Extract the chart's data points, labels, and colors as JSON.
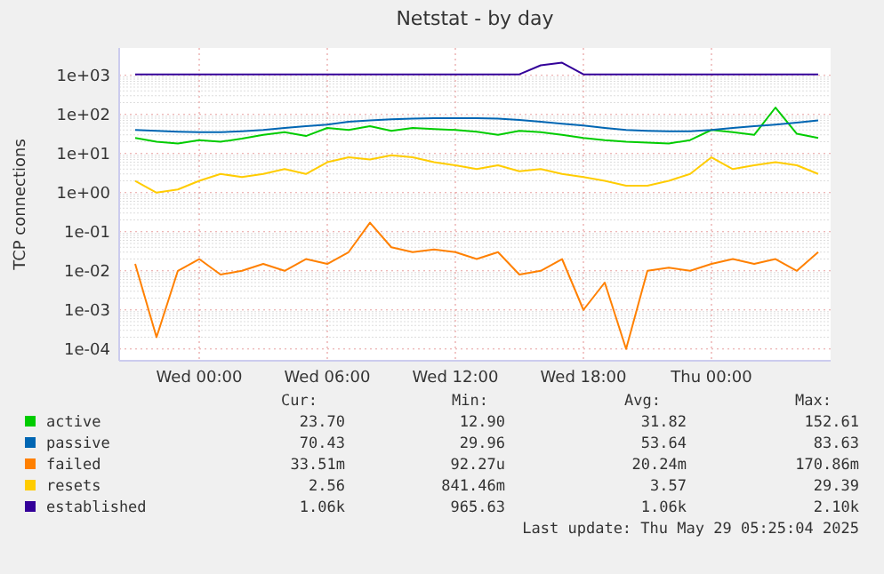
{
  "chart_data": {
    "type": "line",
    "title": "Netstat - by day",
    "ylabel": "TCP connections",
    "log": true,
    "grid": true,
    "legend": "bottom",
    "x": [
      "2025-05-27T21:00",
      "2025-05-27T22:00",
      "2025-05-27T23:00",
      "2025-05-28T00:00",
      "2025-05-28T01:00",
      "2025-05-28T02:00",
      "2025-05-28T03:00",
      "2025-05-28T04:00",
      "2025-05-28T05:00",
      "2025-05-28T06:00",
      "2025-05-28T07:00",
      "2025-05-28T08:00",
      "2025-05-28T09:00",
      "2025-05-28T10:00",
      "2025-05-28T11:00",
      "2025-05-28T12:00",
      "2025-05-28T13:00",
      "2025-05-28T14:00",
      "2025-05-28T15:00",
      "2025-05-28T16:00",
      "2025-05-28T17:00",
      "2025-05-28T18:00",
      "2025-05-28T19:00",
      "2025-05-28T20:00",
      "2025-05-28T21:00",
      "2025-05-28T22:00",
      "2025-05-28T23:00",
      "2025-05-29T00:00",
      "2025-05-29T01:00",
      "2025-05-29T02:00",
      "2025-05-29T03:00",
      "2025-05-29T04:00",
      "2025-05-29T05:00"
    ],
    "xlim": [
      "2025-05-27T20:15",
      "2025-05-29T05:35"
    ],
    "xticks": [
      {
        "value": "2025-05-28T00:00",
        "label": "Wed 00:00"
      },
      {
        "value": "2025-05-28T06:00",
        "label": "Wed 06:00"
      },
      {
        "value": "2025-05-28T12:00",
        "label": "Wed 12:00"
      },
      {
        "value": "2025-05-28T18:00",
        "label": "Wed 18:00"
      },
      {
        "value": "2025-05-29T00:00",
        "label": "Thu 00:00"
      }
    ],
    "ylim": [
      5e-05,
      5000
    ],
    "yticks": [
      {
        "value": 0.0001,
        "label": "1e-04"
      },
      {
        "value": 0.001,
        "label": "1e-03"
      },
      {
        "value": 0.01,
        "label": "1e-02"
      },
      {
        "value": 0.1,
        "label": "1e-01"
      },
      {
        "value": 1,
        "label": "1e+00"
      },
      {
        "value": 10,
        "label": "1e+01"
      },
      {
        "value": 100,
        "label": "1e+02"
      },
      {
        "value": 1000,
        "label": "1e+03"
      }
    ],
    "series": [
      {
        "name": "active",
        "color": "#00cc00",
        "values": [
          25,
          20,
          18,
          22,
          20,
          24,
          30,
          35,
          28,
          45,
          40,
          50,
          38,
          45,
          42,
          40,
          36,
          30,
          38,
          35,
          30,
          25,
          22,
          20,
          19,
          18,
          22,
          40,
          35,
          30,
          150,
          32,
          25
        ]
      },
      {
        "name": "passive",
        "color": "#0066b3",
        "values": [
          40,
          38,
          36,
          35,
          35,
          37,
          40,
          45,
          50,
          55,
          65,
          70,
          75,
          78,
          80,
          80,
          80,
          78,
          72,
          65,
          58,
          52,
          45,
          40,
          38,
          37,
          37,
          40,
          45,
          50,
          55,
          62,
          70
        ]
      },
      {
        "name": "failed",
        "color": "#ff8000",
        "values": [
          0.015,
          0.0002,
          0.01,
          0.02,
          0.008,
          0.01,
          0.015,
          0.01,
          0.02,
          0.015,
          0.03,
          0.17,
          0.04,
          0.03,
          0.035,
          0.03,
          0.02,
          0.03,
          0.008,
          0.01,
          0.02,
          0.001,
          0.005,
          0.0001,
          0.01,
          0.012,
          0.01,
          0.015,
          0.02,
          0.015,
          0.02,
          0.01,
          0.03
        ]
      },
      {
        "name": "resets",
        "color": "#ffcc00",
        "values": [
          2,
          1,
          1.2,
          2,
          3,
          2.5,
          3,
          4,
          3,
          6,
          8,
          7,
          9,
          8,
          6,
          5,
          4,
          5,
          3.5,
          4,
          3,
          2.5,
          2,
          1.5,
          1.5,
          2,
          3,
          8,
          4,
          5,
          6,
          5,
          3
        ]
      },
      {
        "name": "established",
        "color": "#330099",
        "values": [
          1060,
          1060,
          1060,
          1060,
          1060,
          1060,
          1060,
          1060,
          1060,
          1060,
          1060,
          1060,
          1060,
          1060,
          1060,
          1060,
          1060,
          1060,
          1060,
          1800,
          2100,
          1060,
          1060,
          1060,
          1060,
          1060,
          1060,
          1060,
          1060,
          1060,
          1060,
          1060,
          1060
        ]
      }
    ],
    "annotations": [
      "Cur:",
      "Min:",
      "Avg:",
      "Max:",
      "23.70",
      "12.90",
      "31.82",
      "152.61",
      "70.43",
      "29.96",
      "53.64",
      "83.63",
      "33.51m",
      "92.27u",
      "20.24m",
      "170.86m",
      "2.56",
      "841.46m",
      "3.57",
      "29.39",
      "1.06k",
      "965.63",
      "1.06k",
      "2.10k",
      "Last update: Thu May 29 05:25:04 2025"
    ]
  }
}
